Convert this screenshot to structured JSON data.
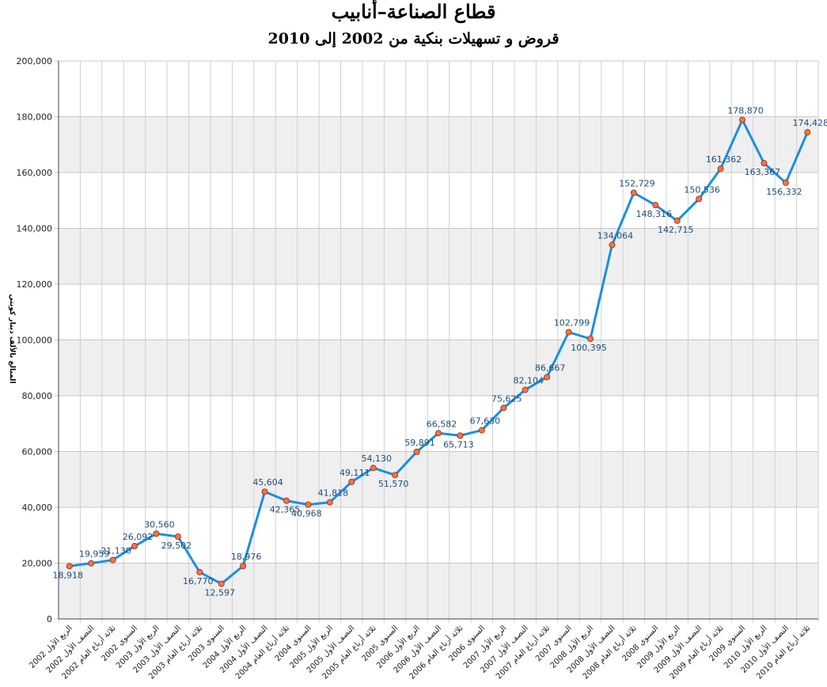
{
  "title": "قطاع الصناعة–أنابيب",
  "subtitle": "قروض و تسهيلات بنكية من 2002 إلى 2010",
  "chart_data": {
    "type": "line",
    "title": "قطاع الصناعة–أنابيب",
    "subtitle": "قروض و تسهيلات بنكية من 2002 إلى 2010",
    "ylabel": "المبالغ بالألف دينار كويتي",
    "xlabel": "",
    "ylim": [
      0,
      200000
    ],
    "yticks": [
      "0",
      "20,000",
      "40,000",
      "60,000",
      "80,000",
      "100,000",
      "120,000",
      "140,000",
      "160,000",
      "180,000",
      "200,000"
    ],
    "grid": true,
    "legend": "none",
    "line_color": "#1a8fe3",
    "marker_color": "#ff7043",
    "categories": [
      "الربع الأول 2002",
      "النصف الأول 2002",
      "ثلاثة أرباع العام 2002",
      "السنوي 2002",
      "الربع الأول 2003",
      "النصف الأول 2003",
      "ثلاثة أرباع العام 2003",
      "السنوي 2003",
      "الربع الأول 2004",
      "النصف الأول 2004",
      "ثلاثة أرباع العام 2004",
      "السنوي 2004",
      "الربع الأول 2005",
      "النصف الأول 2005",
      "ثلاثة أرباع العام 2005",
      "السنوي 2005",
      "الربع الأول 2006",
      "النصف الأول 2006",
      "ثلاثة أرباع العام 2006",
      "السنوي 2006",
      "الربع الأول 2007",
      "النصف الأول 2007",
      "ثلاثة أرباع العام 2007",
      "السنوي 2007",
      "الربع الأول 2008",
      "النصف الأول 2008",
      "ثلاثة أرباع العام 2008",
      "السنوي 2008",
      "الربع الأول 2009",
      "النصف الأول 2009",
      "ثلاثة أرباع العام 2009",
      "السنوي 2009",
      "الربع الأول 2010",
      "النصف الأول 2010",
      "ثلاثة أرباع العام 2010"
    ],
    "values": [
      18918,
      19959,
      21130,
      26092,
      30560,
      29502,
      16770,
      12597,
      18976,
      45604,
      42365,
      40968,
      41818,
      49111,
      54130,
      51570,
      59891,
      66582,
      65713,
      67630,
      75625,
      82104,
      86667,
      102799,
      100395,
      134064,
      152729,
      148316,
      142715,
      150536,
      161362,
      178870,
      163367,
      156332,
      174428
    ],
    "labels": [
      "18,918",
      "19,959",
      "21,130",
      "26,092",
      "30,560",
      "29,502",
      "16,770",
      "12,597",
      "18,976",
      "45,604",
      "42,365",
      "40,968",
      "41,818",
      "49,111",
      "54,130",
      "51,570",
      "59,891",
      "66,582",
      "65,713",
      "67,630",
      "75,625",
      "82,104",
      "86,667",
      "102,799",
      "100,395",
      "134,064",
      "152,729",
      "148,316",
      "142,715",
      "150,536",
      "161,362",
      "178,870",
      "163,367",
      "156,332",
      "174,428"
    ]
  }
}
